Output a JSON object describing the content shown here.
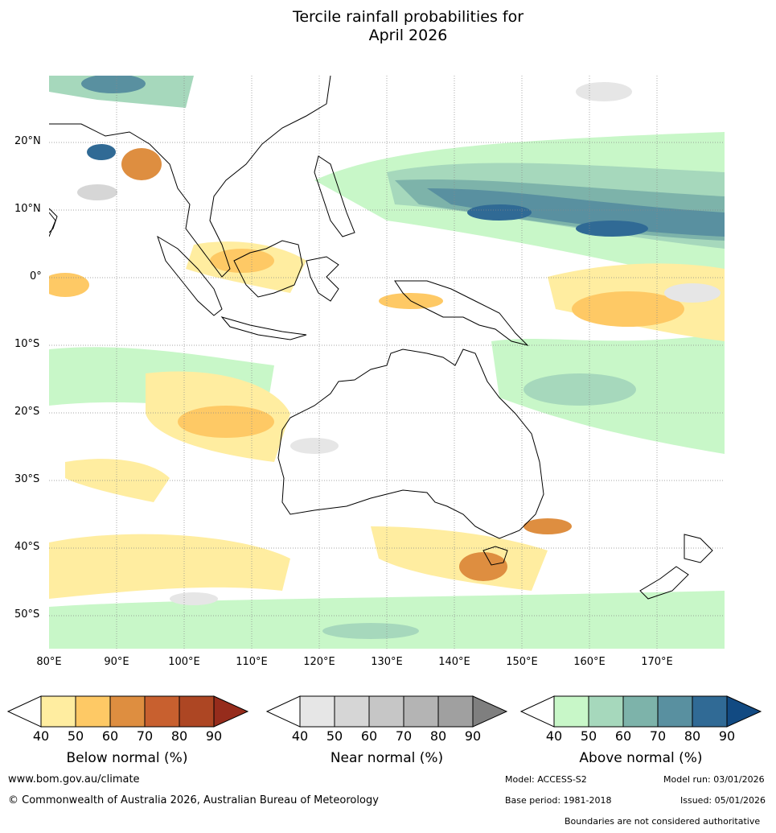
{
  "title_line1": "Tercile rainfall probabilities for",
  "title_line2": "April 2026",
  "lat_labels": [
    "20°N",
    "10°N",
    "0°",
    "10°S",
    "20°S",
    "30°S",
    "40°S",
    "50°S"
  ],
  "lon_labels": [
    "80°E",
    "90°E",
    "100°E",
    "110°E",
    "120°E",
    "130°E",
    "140°E",
    "150°E",
    "160°E",
    "170°E"
  ],
  "colorbars": [
    {
      "title": "Below normal (%)",
      "ticks": [
        "40",
        "50",
        "60",
        "70",
        "80",
        "90"
      ],
      "colors": [
        "#ffeda0",
        "#fec965",
        "#de8e40",
        "#c8602f",
        "#ad4623"
      ],
      "over": "#962c1c"
    },
    {
      "title": "Near normal (%)",
      "ticks": [
        "40",
        "50",
        "60",
        "70",
        "80",
        "90"
      ],
      "colors": [
        "#e6e6e6",
        "#d6d6d6",
        "#c6c6c6",
        "#b4b4b4",
        "#a0a0a0"
      ],
      "over": "#7f7f7f"
    },
    {
      "title": "Above normal (%)",
      "ticks": [
        "40",
        "50",
        "60",
        "70",
        "80",
        "90"
      ],
      "colors": [
        "#c8f7c8",
        "#a6d8bc",
        "#7db3aa",
        "#5990a0",
        "#306a95"
      ],
      "over": "#124a82"
    }
  ],
  "footer": {
    "url": "www.bom.gov.au/climate",
    "copyright": "© Commonwealth of Australia 2026, Australian Bureau of Meteorology",
    "model": "Model: ACCESS-S2",
    "model_run": "Model run: 03/01/2026",
    "base_period": "Base period: 1981-2018",
    "issued": "Issued: 05/01/2026",
    "boundaries": "Boundaries are not considered authoritative"
  }
}
